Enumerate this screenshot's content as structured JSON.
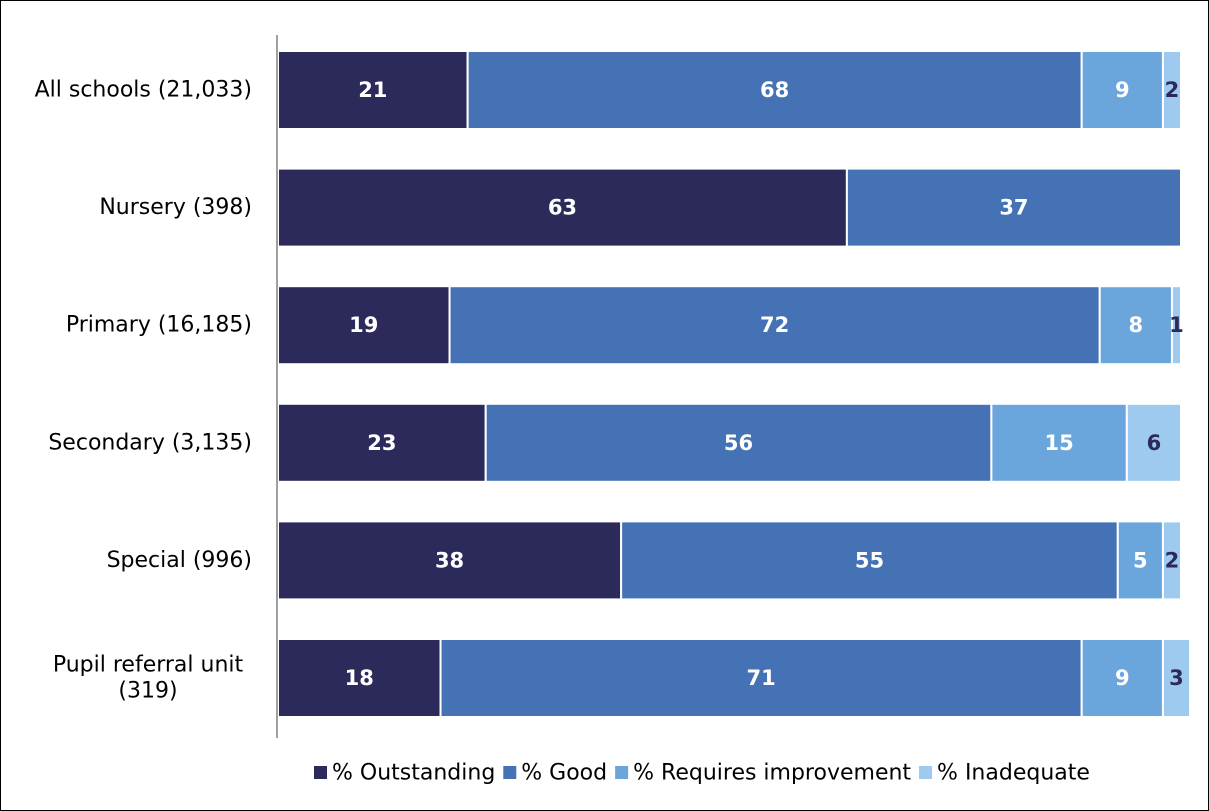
{
  "chart_data": {
    "type": "bar",
    "orientation": "horizontal",
    "stacked": true,
    "categories": [
      [
        "All schools (21,033)"
      ],
      [
        "Nursery (398)"
      ],
      [
        "Primary (16,185)"
      ],
      [
        "Secondary (3,135)"
      ],
      [
        "Special (996)"
      ],
      [
        "Pupil referral unit",
        "(319)"
      ]
    ],
    "series": [
      {
        "name": "% Outstanding",
        "color": "#2c2a5a",
        "label_color": "#ffffff",
        "values": [
          21,
          63,
          19,
          23,
          38,
          18
        ]
      },
      {
        "name": "% Good",
        "color": "#4472b4",
        "label_color": "#ffffff",
        "values": [
          68,
          37,
          72,
          56,
          55,
          71
        ]
      },
      {
        "name": "% Requires improvement",
        "color": "#6aa6dc",
        "label_color": "#ffffff",
        "values": [
          9,
          0,
          8,
          15,
          5,
          9
        ]
      },
      {
        "name": "% Inadequate",
        "color": "#9dcaee",
        "label_color": "#2c2a5a",
        "values": [
          2,
          0,
          1,
          6,
          2,
          3
        ]
      }
    ],
    "xlim": [
      0,
      100
    ],
    "grid": false,
    "legend_position": "bottom-right",
    "title": "",
    "xlabel": "",
    "ylabel": ""
  }
}
